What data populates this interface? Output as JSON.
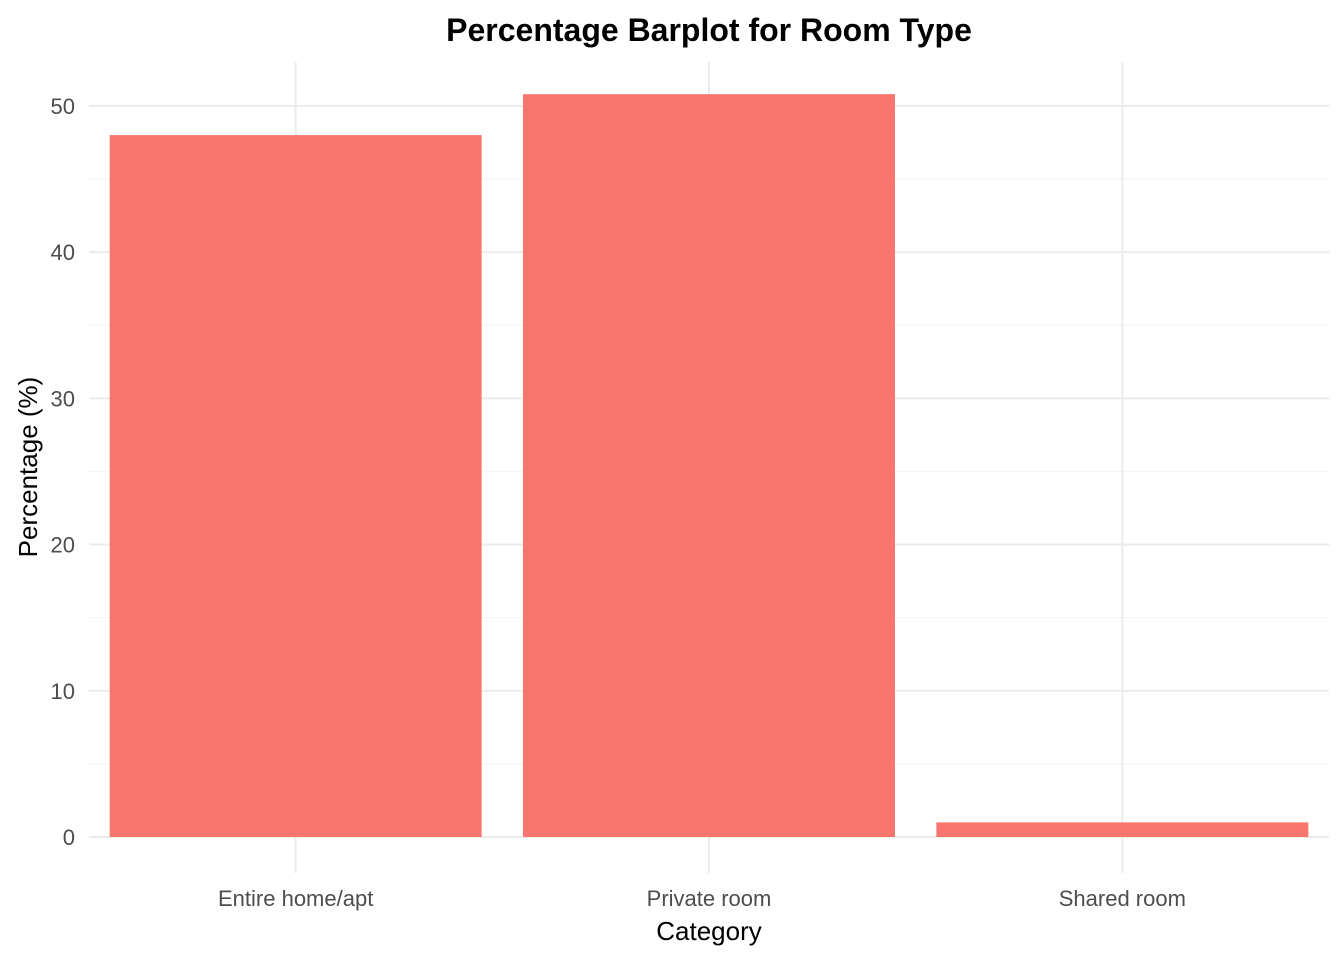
{
  "chart_data": {
    "type": "bar",
    "title": "Percentage Barplot for Room Type",
    "xlabel": "Category",
    "ylabel": "Percentage (%)",
    "categories": [
      "Entire home/apt",
      "Private room",
      "Shared room"
    ],
    "values": [
      48.0,
      50.8,
      1.0
    ],
    "ylim": [
      0,
      53
    ],
    "y_ticks": [
      0,
      10,
      20,
      30,
      40,
      50
    ],
    "y_tick_labels": [
      "0",
      "10",
      "20",
      "30",
      "40",
      "50"
    ],
    "grid": true,
    "legend": "none",
    "bar_color": "#F8766D",
    "grid_color": "#EBEBEB"
  }
}
